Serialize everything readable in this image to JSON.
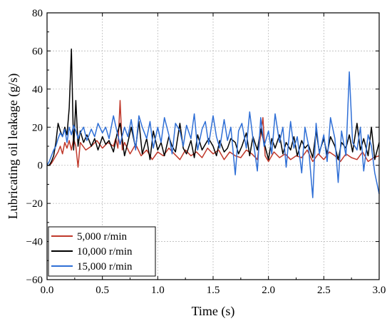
{
  "chart_data": {
    "type": "line",
    "xlabel": "Time (s)",
    "ylabel": "Lubricating oil leakage (g/s)",
    "xlim": [
      0,
      3.0
    ],
    "ylim": [
      -60,
      80
    ],
    "xticks": [
      "0.0",
      "0.5",
      "1.0",
      "1.5",
      "2.0",
      "2.5",
      "3.0"
    ],
    "yticks": [
      "−60",
      "−40",
      "−20",
      "0",
      "20",
      "40",
      "60",
      "80"
    ],
    "grid": true,
    "legend_position": "bottom-left",
    "series": [
      {
        "name": "5,000 r/min",
        "color": "#c0392b",
        "x": [
          0.0,
          0.02,
          0.04,
          0.06,
          0.08,
          0.1,
          0.12,
          0.14,
          0.16,
          0.18,
          0.2,
          0.22,
          0.24,
          0.26,
          0.28,
          0.3,
          0.35,
          0.4,
          0.45,
          0.5,
          0.55,
          0.6,
          0.62,
          0.64,
          0.66,
          0.68,
          0.7,
          0.75,
          0.8,
          0.85,
          0.9,
          0.95,
          1.0,
          1.05,
          1.1,
          1.15,
          1.2,
          1.25,
          1.3,
          1.35,
          1.4,
          1.45,
          1.5,
          1.55,
          1.6,
          1.65,
          1.7,
          1.75,
          1.8,
          1.85,
          1.9,
          1.95,
          1.97,
          2.0,
          2.05,
          2.1,
          2.15,
          2.2,
          2.25,
          2.3,
          2.35,
          2.4,
          2.45,
          2.5,
          2.55,
          2.6,
          2.65,
          2.7,
          2.75,
          2.8,
          2.85,
          2.9,
          2.95,
          3.0
        ],
        "values": [
          0,
          0,
          1,
          3,
          5,
          7,
          10,
          6,
          12,
          9,
          13,
          8,
          14,
          10,
          -1,
          12,
          8,
          10,
          13,
          9,
          12,
          10,
          14,
          9,
          34,
          8,
          12,
          6,
          11,
          5,
          8,
          3,
          7,
          5,
          9,
          6,
          3,
          8,
          5,
          7,
          4,
          9,
          6,
          8,
          3,
          7,
          5,
          4,
          8,
          6,
          3,
          25,
          5,
          2,
          7,
          4,
          6,
          3,
          5,
          4,
          8,
          2,
          6,
          3,
          7,
          5,
          2,
          6,
          4,
          3,
          7,
          2,
          4,
          5
        ]
      },
      {
        "name": "10,000 r/min",
        "color": "#000000",
        "x": [
          0.0,
          0.02,
          0.04,
          0.06,
          0.08,
          0.1,
          0.12,
          0.14,
          0.16,
          0.18,
          0.2,
          0.22,
          0.24,
          0.26,
          0.28,
          0.3,
          0.33,
          0.36,
          0.4,
          0.43,
          0.46,
          0.5,
          0.53,
          0.56,
          0.6,
          0.63,
          0.66,
          0.7,
          0.73,
          0.76,
          0.8,
          0.83,
          0.86,
          0.9,
          0.93,
          0.96,
          1.0,
          1.03,
          1.06,
          1.1,
          1.13,
          1.16,
          1.2,
          1.23,
          1.26,
          1.3,
          1.33,
          1.36,
          1.4,
          1.43,
          1.46,
          1.5,
          1.53,
          1.56,
          1.6,
          1.63,
          1.66,
          1.7,
          1.73,
          1.76,
          1.8,
          1.83,
          1.86,
          1.9,
          1.93,
          1.96,
          2.0,
          2.03,
          2.06,
          2.1,
          2.13,
          2.16,
          2.2,
          2.23,
          2.26,
          2.3,
          2.33,
          2.36,
          2.4,
          2.43,
          2.46,
          2.5,
          2.53,
          2.56,
          2.6,
          2.63,
          2.66,
          2.7,
          2.73,
          2.76,
          2.8,
          2.83,
          2.86,
          2.9,
          2.93,
          2.96,
          3.0
        ],
        "values": [
          0,
          0,
          2,
          5,
          12,
          22,
          18,
          15,
          20,
          16,
          30,
          61,
          8,
          34,
          10,
          18,
          12,
          16,
          10,
          14,
          8,
          15,
          11,
          13,
          7,
          16,
          22,
          5,
          12,
          20,
          9,
          23,
          6,
          14,
          3,
          18,
          8,
          12,
          5,
          15,
          10,
          7,
          22,
          9,
          6,
          13,
          4,
          16,
          8,
          11,
          14,
          10,
          5,
          13,
          7,
          9,
          14,
          12,
          6,
          10,
          17,
          5,
          15,
          8,
          19,
          12,
          3,
          14,
          9,
          16,
          6,
          12,
          8,
          15,
          5,
          13,
          9,
          11,
          4,
          18,
          7,
          14,
          6,
          15,
          10,
          3,
          12,
          9,
          16,
          7,
          22,
          8,
          14,
          5,
          20,
          3,
          12
        ]
      },
      {
        "name": "15,000 r/min",
        "color": "#2f6fd6",
        "x": [
          0.0,
          0.02,
          0.04,
          0.06,
          0.08,
          0.1,
          0.12,
          0.14,
          0.16,
          0.18,
          0.2,
          0.22,
          0.24,
          0.26,
          0.28,
          0.3,
          0.33,
          0.36,
          0.4,
          0.43,
          0.46,
          0.5,
          0.53,
          0.56,
          0.6,
          0.63,
          0.66,
          0.7,
          0.73,
          0.76,
          0.8,
          0.83,
          0.86,
          0.9,
          0.93,
          0.96,
          1.0,
          1.03,
          1.06,
          1.1,
          1.13,
          1.16,
          1.2,
          1.23,
          1.26,
          1.3,
          1.33,
          1.36,
          1.4,
          1.43,
          1.46,
          1.5,
          1.53,
          1.56,
          1.6,
          1.63,
          1.66,
          1.7,
          1.73,
          1.76,
          1.8,
          1.83,
          1.86,
          1.9,
          1.93,
          1.96,
          2.0,
          2.03,
          2.06,
          2.1,
          2.13,
          2.16,
          2.2,
          2.23,
          2.26,
          2.3,
          2.33,
          2.36,
          2.4,
          2.43,
          2.46,
          2.5,
          2.53,
          2.56,
          2.6,
          2.63,
          2.66,
          2.7,
          2.73,
          2.76,
          2.8,
          2.83,
          2.86,
          2.9,
          2.93,
          2.96,
          3.0
        ],
        "values": [
          0,
          2,
          5,
          8,
          10,
          14,
          17,
          15,
          19,
          12,
          20,
          16,
          21,
          18,
          14,
          17,
          20,
          13,
          19,
          15,
          22,
          17,
          20,
          14,
          26,
          18,
          11,
          20,
          15,
          24,
          8,
          26,
          20,
          14,
          23,
          9,
          20,
          12,
          25,
          16,
          6,
          22,
          18,
          10,
          21,
          14,
          27,
          8,
          19,
          23,
          11,
          26,
          15,
          9,
          24,
          13,
          20,
          -5,
          18,
          22,
          9,
          28,
          14,
          -3,
          25,
          10,
          18,
          6,
          27,
          12,
          20,
          -1,
          23,
          9,
          15,
          -4,
          20,
          11,
          -17,
          22,
          6,
          16,
          2,
          25,
          14,
          -9,
          18,
          5,
          49,
          12,
          8,
          20,
          -3,
          16,
          10,
          -4,
          -15
        ]
      }
    ]
  }
}
